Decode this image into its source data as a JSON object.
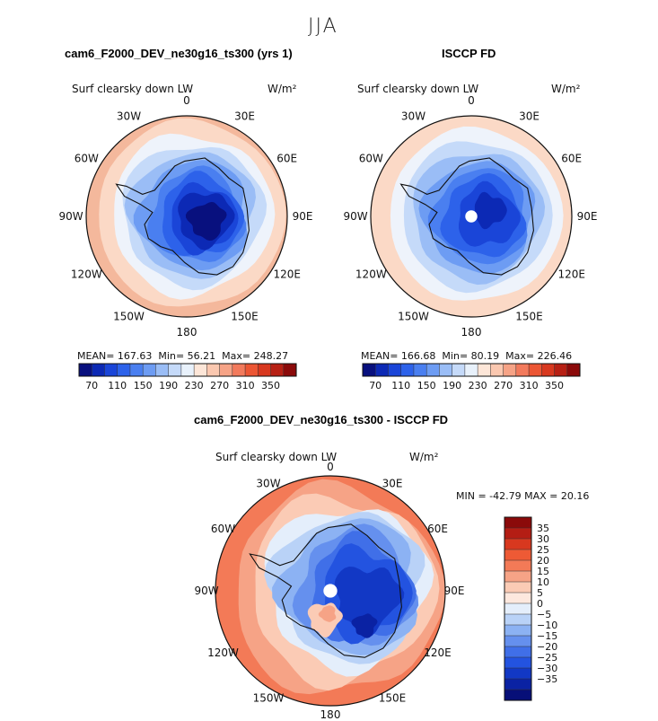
{
  "season": "JJA",
  "panels": [
    {
      "title": "cam6_F2000_DEV_ne30g16_ts300 (yrs 1)",
      "variable": "Surf clearsky down LW",
      "units": "W/m²",
      "stats": {
        "mean_label": "MEAN=",
        "mean": "167.63",
        "min_label": "Min=",
        "min": "56.21",
        "max_label": "Max=",
        "max": "248.27"
      }
    },
    {
      "title": "ISCCP FD",
      "variable": "Surf clearsky down LW",
      "units": "W/m²",
      "stats": {
        "mean_label": "MEAN=",
        "mean": "166.68",
        "min_label": "Min=",
        "min": "80.19",
        "max_label": "Max=",
        "max": "226.46"
      }
    },
    {
      "title": "cam6_F2000_DEV_ne30g16_ts300 - ISCCP FD",
      "variable": "Surf clearsky down LW",
      "units": "W/m²",
      "minmax": "MIN = -42.79 MAX =  20.16"
    }
  ],
  "lon_labels": [
    "0",
    "30E",
    "60E",
    "90E",
    "120E",
    "150E",
    "180",
    "150W",
    "120W",
    "90W",
    "60W",
    "30W"
  ],
  "colorbar_abs": {
    "colors": [
      "#08107e",
      "#0c29b5",
      "#1a45d8",
      "#2d62ea",
      "#4a7ff0",
      "#6d9cf3",
      "#9abdf6",
      "#c5daf9",
      "#e8f1fb",
      "#fde6d8",
      "#fbc8b0",
      "#f6a386",
      "#f27a5c",
      "#ec5634",
      "#d8381f",
      "#b72014",
      "#8b0a0a"
    ],
    "labels": [
      "70",
      "110",
      "150",
      "190",
      "230",
      "270",
      "310",
      "350"
    ]
  },
  "colorbar_diff": {
    "colors": [
      "#8b0a0a",
      "#b41d14",
      "#d8381f",
      "#ee5a35",
      "#f37a57",
      "#f6a386",
      "#fbcbb5",
      "#fde8de",
      "#e4eefb",
      "#b9d2f7",
      "#8cb2f3",
      "#6590ee",
      "#406fe8",
      "#2353e0",
      "#1238c5",
      "#0a22a3",
      "#070f78"
    ],
    "labels": [
      "35",
      "30",
      "25",
      "20",
      "15",
      "10",
      "5",
      "0",
      "−5",
      "−10",
      "−15",
      "−20",
      "−25",
      "−30",
      "−35"
    ]
  },
  "chart_data": [
    {
      "type": "heatmap",
      "title": "cam6_F2000_DEV_ne30g16_ts300 (yrs 1)",
      "subtitle": "Surf clearsky down LW",
      "units": "W/m²",
      "projection": "south polar stereographic",
      "stats": {
        "mean": 167.63,
        "min": 56.21,
        "max": 248.27
      },
      "contour_levels": [
        70,
        90,
        110,
        130,
        150,
        170,
        190,
        210,
        230,
        250,
        270,
        290,
        310,
        330,
        350
      ]
    },
    {
      "type": "heatmap",
      "title": "ISCCP FD",
      "subtitle": "Surf clearsky down LW",
      "units": "W/m²",
      "projection": "south polar stereographic",
      "stats": {
        "mean": 166.68,
        "min": 80.19,
        "max": 226.46
      },
      "contour_levels": [
        70,
        90,
        110,
        130,
        150,
        170,
        190,
        210,
        230,
        250,
        270,
        290,
        310,
        330,
        350
      ]
    },
    {
      "type": "heatmap",
      "title": "cam6_F2000_DEV_ne30g16_ts300 - ISCCP FD",
      "subtitle": "Surf clearsky down LW",
      "units": "W/m²",
      "projection": "south polar stereographic",
      "stats": {
        "min": -42.79,
        "max": 20.16
      },
      "contour_levels": [
        -35,
        -30,
        -25,
        -20,
        -15,
        -10,
        -5,
        0,
        5,
        10,
        15,
        20,
        25,
        30,
        35
      ]
    }
  ]
}
